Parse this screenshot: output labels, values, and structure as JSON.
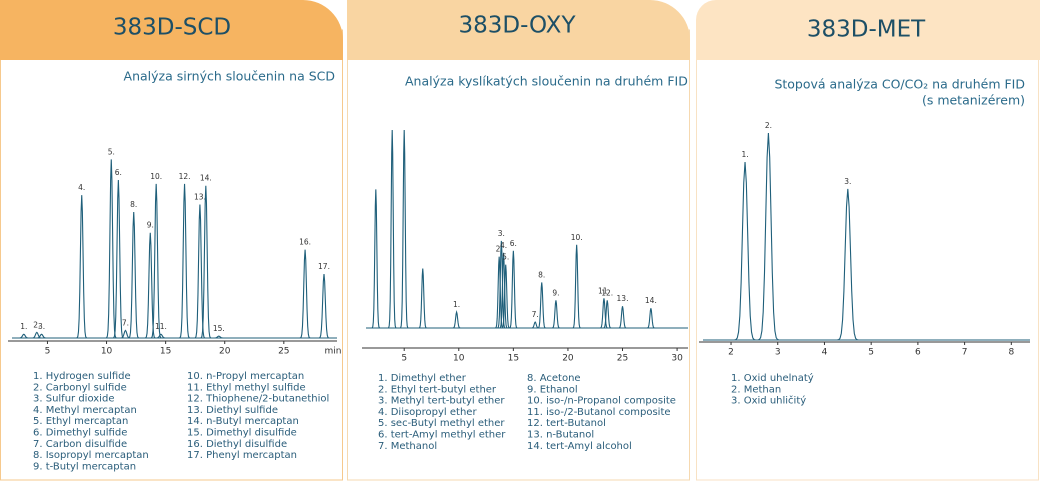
{
  "chart_data": [
    {
      "type": "peaks",
      "title": "383D-SCD",
      "subtitle": [
        "Analýza sirných sloučenin na SCD"
      ],
      "x_label": "min",
      "xlim": [
        2,
        29.5
      ],
      "xticks": [
        5,
        10,
        15,
        20,
        25
      ],
      "x": [
        3.0,
        4.1,
        4.5,
        7.9,
        10.4,
        11.0,
        11.6,
        12.3,
        13.7,
        14.2,
        14.6,
        16.6,
        17.9,
        18.4,
        19.5,
        26.8,
        28.4
      ],
      "values": [
        2,
        3,
        2,
        76,
        95,
        84,
        4,
        67,
        56,
        82,
        2,
        82,
        71,
        81,
        1,
        47,
        34
      ],
      "peak_labels": [
        "1.",
        "2.",
        "3.",
        "4.",
        "5.",
        "6.",
        "7.",
        "8.",
        "9.",
        "10.",
        "11.",
        "12.",
        "13.",
        "14.",
        "15.",
        "16.",
        "17."
      ],
      "compounds": [
        [
          "1. Hydrogen sulfide",
          "2. Carbonyl sulfide",
          "3. Sulfur dioxide",
          "4. Methyl mercaptan",
          "5. Ethyl mercaptan",
          "6. Dimethyl sulfide",
          "7. Carbon disulfide",
          "8. Isopropyl mercaptan",
          "9. t-Butyl mercaptan"
        ],
        [
          "10. n-Propyl mercaptan",
          "11. Ethyl methyl sulfide",
          "12. Thiophene/2-butanethiol",
          "13. Diethyl sulfide",
          "14. n-Butyl mercaptan",
          "15. Dimethyl disulfide",
          "16. Diethyl disulfide",
          "17. Phenyl mercaptan"
        ]
      ],
      "color": "#1f5f7a"
    },
    {
      "type": "peaks",
      "title": "383D-OXY",
      "subtitle": [
        "Analýza kyslíkatých sloučenin na druhém FID"
      ],
      "xlim": [
        1.5,
        31
      ],
      "xticks": [
        5,
        10,
        15,
        20,
        25,
        30
      ],
      "x": [
        2.4,
        3.9,
        5.0,
        6.7,
        9.8,
        13.7,
        13.9,
        14.1,
        14.3,
        15.0,
        17.0,
        17.6,
        18.9,
        20.8,
        23.3,
        23.6,
        25.0,
        27.6
      ],
      "values": [
        70,
        100,
        100,
        30,
        8,
        36,
        44,
        38,
        32,
        39,
        3,
        23,
        14,
        42,
        15,
        14,
        11,
        10
      ],
      "peak_labels": [
        null,
        null,
        null,
        null,
        "1.",
        "2.",
        "3.",
        "4.",
        "5.",
        "6.",
        "7.",
        "8.",
        "9.",
        "10.",
        "11.",
        "12.",
        "13.",
        "14."
      ],
      "compounds": [
        [
          "1. Dimethyl ether",
          "2. Ethyl tert-butyl ether",
          "3. Methyl tert-butyl ether",
          "4. Diisopropyl ether",
          "5. sec-Butyl methyl ether",
          "6. tert-Amyl methyl ether",
          "7. Methanol"
        ],
        [
          "8. Acetone",
          "9. Ethanol",
          "10. iso-/n-Propanol composite",
          "11. iso-/2-Butanol composite",
          "12. tert-Butanol",
          "13. n-Butanol",
          "14. tert-Amyl alcohol"
        ]
      ],
      "color": "#1f5f7a"
    },
    {
      "type": "peaks",
      "title": "383D-MET",
      "subtitle": [
        "Stopová analýza CO/CO₂ na druhém FID",
        "(s metanizérem)"
      ],
      "xlim": [
        1.4,
        8.4
      ],
      "xticks": [
        2,
        3,
        4,
        5,
        6,
        7,
        8
      ],
      "x": [
        2.3,
        2.8,
        4.5
      ],
      "values": [
        86,
        100,
        73
      ],
      "peak_labels": [
        "1.",
        "2.",
        "3."
      ],
      "compounds": [
        [
          "1. Oxid uhelnatý",
          "2. Methan",
          "3. Oxid uhličitý"
        ]
      ],
      "color": "#1f5f7a"
    }
  ]
}
